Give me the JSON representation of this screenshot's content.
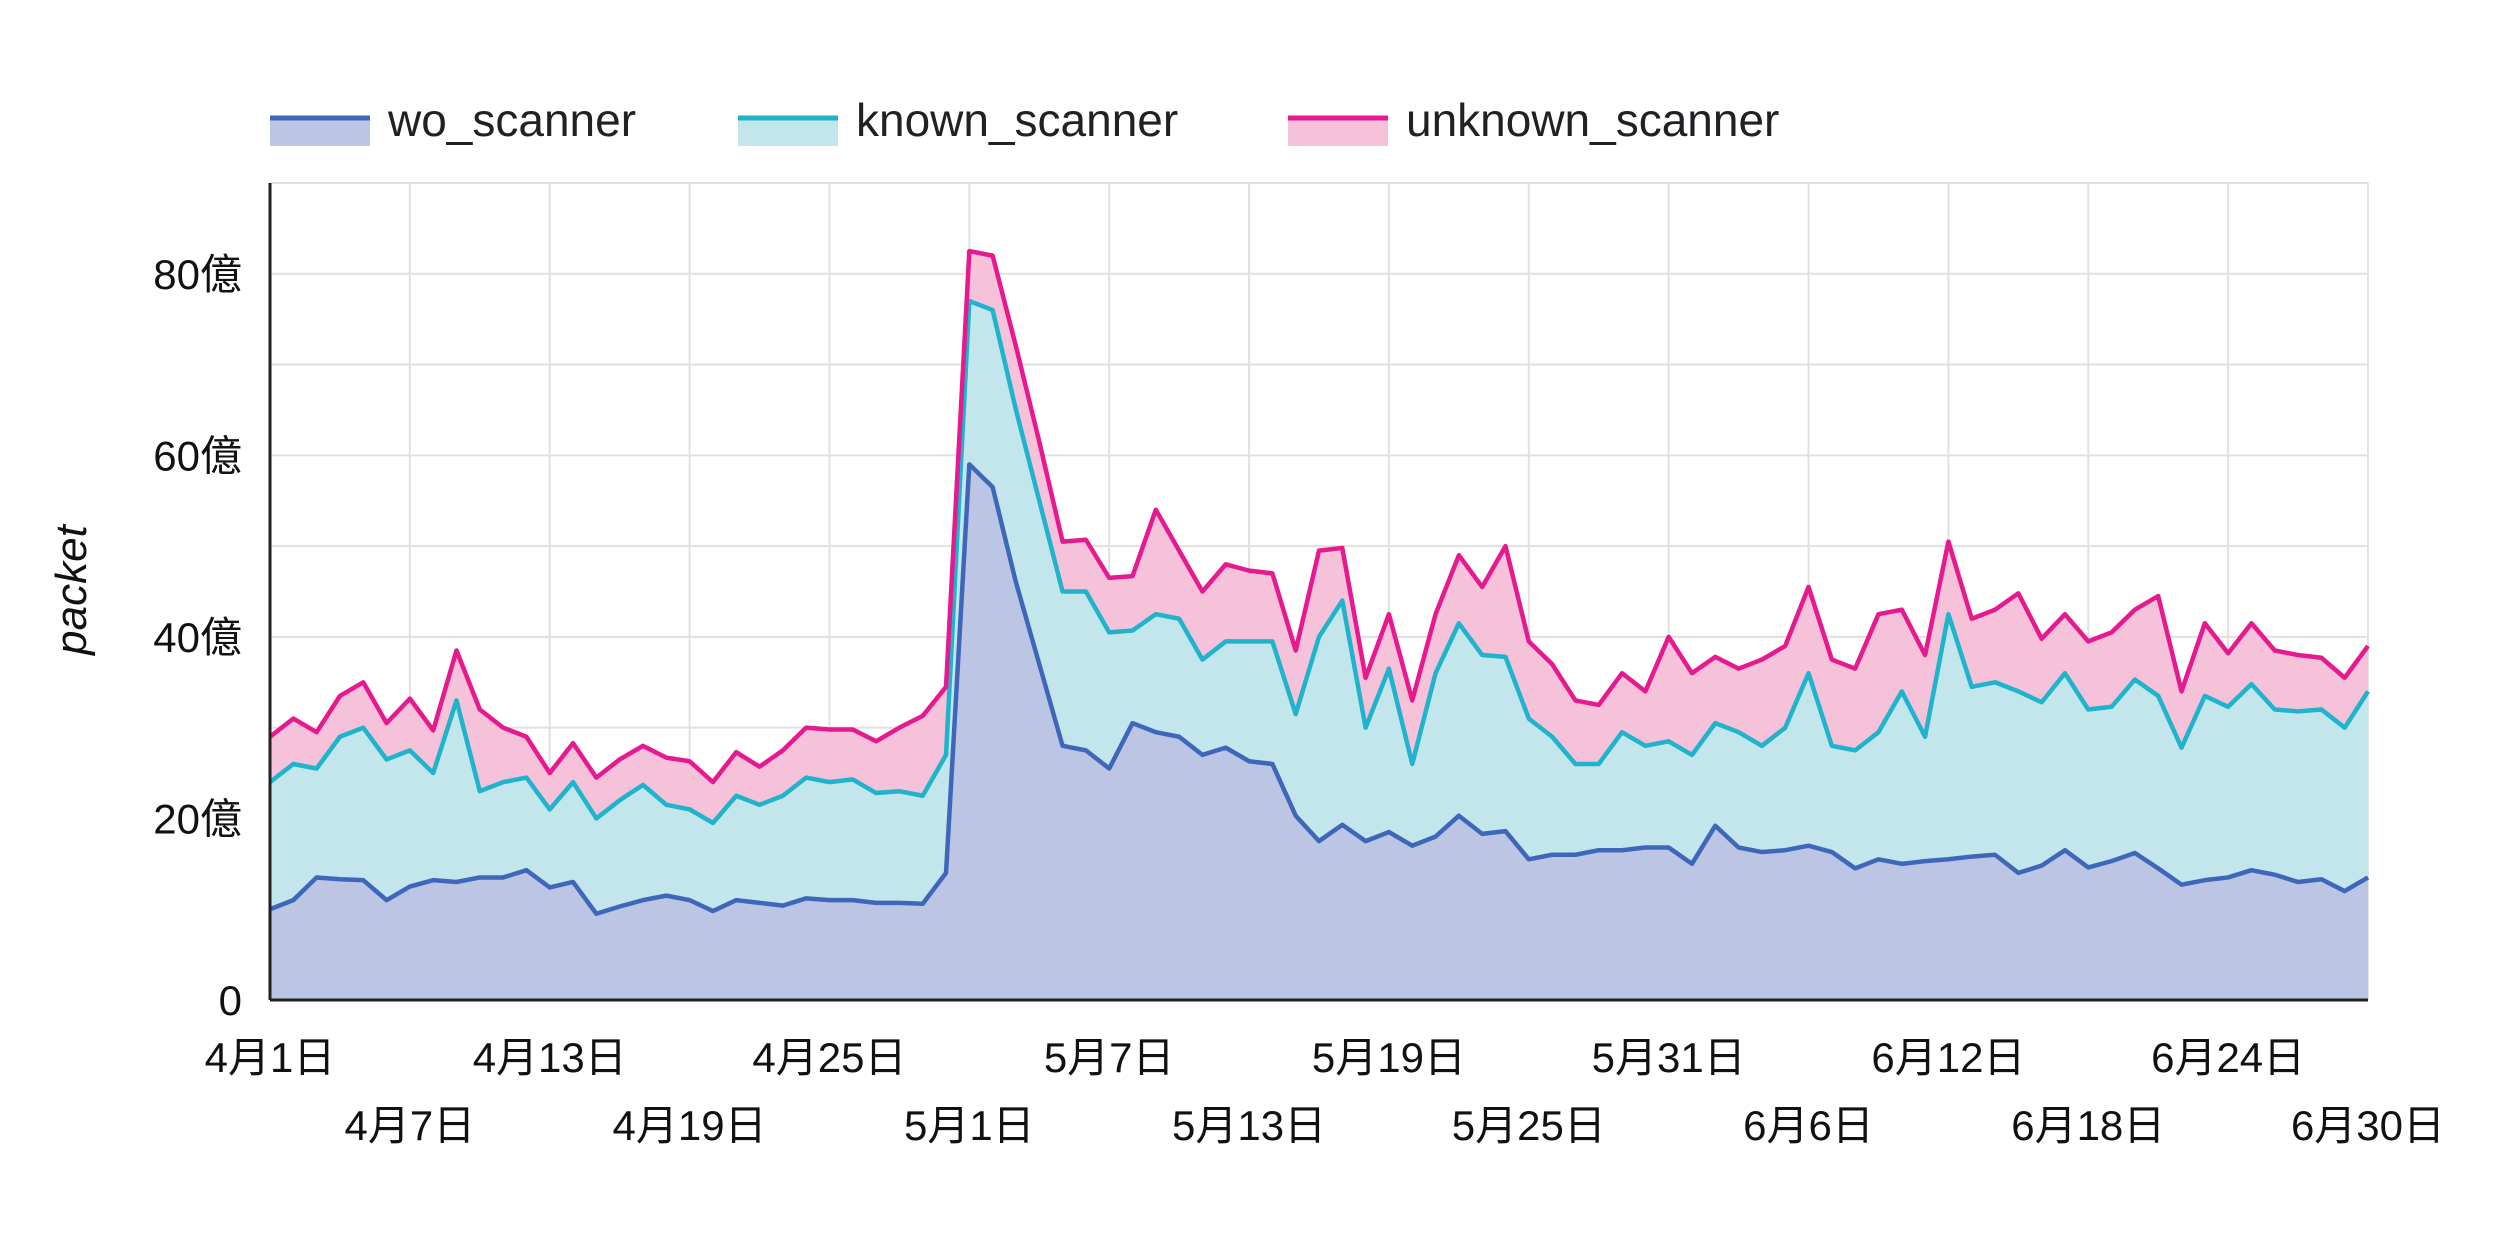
{
  "chart_data": {
    "type": "area",
    "stacked": true,
    "ylabel": "packet",
    "ylim": [
      0,
      90
    ],
    "y_unit": "億",
    "y_ticks": [
      0,
      20,
      40,
      60,
      80
    ],
    "y_tick_labels": [
      "0",
      "20億",
      "40億",
      "60億",
      "80億"
    ],
    "x_range": [
      "2020-04-01",
      "2020-06-30"
    ],
    "x_tick_labels_row1": [
      {
        "date": "2020-04-01",
        "label": "4月1日"
      },
      {
        "date": "2020-04-13",
        "label": "4月13日"
      },
      {
        "date": "2020-04-25",
        "label": "4月25日"
      },
      {
        "date": "2020-05-07",
        "label": "5月7日"
      },
      {
        "date": "2020-05-19",
        "label": "5月19日"
      },
      {
        "date": "2020-05-31",
        "label": "5月31日"
      },
      {
        "date": "2020-06-12",
        "label": "6月12日"
      },
      {
        "date": "2020-06-24",
        "label": "6月24日"
      }
    ],
    "x_tick_labels_row2": [
      {
        "date": "2020-04-07",
        "label": "4月7日"
      },
      {
        "date": "2020-04-19",
        "label": "4月19日"
      },
      {
        "date": "2020-05-01",
        "label": "5月1日"
      },
      {
        "date": "2020-05-13",
        "label": "5月13日"
      },
      {
        "date": "2020-05-25",
        "label": "5月25日"
      },
      {
        "date": "2020-06-06",
        "label": "6月6日"
      },
      {
        "date": "2020-06-18",
        "label": "6月18日"
      },
      {
        "date": "2020-06-30",
        "label": "6月30日"
      }
    ],
    "grid": true,
    "legend_position": "top",
    "series": [
      {
        "name": "wo_scanner",
        "line_color": "#3f67b9",
        "fill_color": "#bcc6e4",
        "cumulative_values": [
          10.0,
          11.0,
          13.5,
          13.3,
          13.2,
          11.0,
          12.5,
          13.2,
          13.0,
          13.5,
          13.5,
          14.3,
          12.4,
          13.0,
          9.5,
          10.3,
          11.0,
          11.5,
          11.0,
          9.8,
          11.0,
          10.7,
          10.4,
          11.2,
          11.0,
          11.0,
          10.7,
          10.7,
          10.6,
          14.0,
          59.0,
          56.5,
          46.0,
          37.0,
          28.0,
          27.5,
          25.5,
          30.5,
          29.5,
          29.0,
          27.0,
          27.8,
          26.3,
          26.0,
          20.3,
          17.5,
          19.3,
          17.5,
          18.5,
          17.0,
          18.0,
          20.3,
          18.3,
          18.6,
          15.5,
          16.0,
          16.0,
          16.5,
          16.5,
          16.8,
          16.8,
          15.0,
          19.2,
          16.8,
          16.3,
          16.5,
          17.0,
          16.3,
          14.5,
          15.5,
          15.0,
          15.3,
          15.5,
          15.8,
          16.0,
          14.0,
          14.8,
          16.5,
          14.6,
          15.3,
          16.2,
          14.5,
          12.7,
          13.2,
          13.5,
          14.3,
          13.8,
          13.0,
          13.3,
          12.0,
          13.5
        ]
      },
      {
        "name": "known_scanner",
        "line_color": "#1fb3cc",
        "fill_color": "#c3e6ec",
        "cumulative_values": [
          24.0,
          26.0,
          25.5,
          29.0,
          30.0,
          26.5,
          27.5,
          25.0,
          33.0,
          23.0,
          24.0,
          24.5,
          21.0,
          24.0,
          20.0,
          22.0,
          23.7,
          21.5,
          21.0,
          19.5,
          22.5,
          21.5,
          22.5,
          24.5,
          24.0,
          24.3,
          22.8,
          23.0,
          22.5,
          27.0,
          77.0,
          76.0,
          65.0,
          55.0,
          45.0,
          45.0,
          40.5,
          40.7,
          42.5,
          42.0,
          37.5,
          39.5,
          39.5,
          39.5,
          31.5,
          40.0,
          44.0,
          30.0,
          36.5,
          26.0,
          36.0,
          41.5,
          38.0,
          37.8,
          31.0,
          29.0,
          26.0,
          26.0,
          29.5,
          28.0,
          28.5,
          27.0,
          30.5,
          29.5,
          28.0,
          30.0,
          36.0,
          28.0,
          27.5,
          29.5,
          34.0,
          29.0,
          42.5,
          34.5,
          35.0,
          34.0,
          32.8,
          36.0,
          32.0,
          32.3,
          35.3,
          33.5,
          27.8,
          33.5,
          32.3,
          34.8,
          32.0,
          31.8,
          32.0,
          30.0,
          34.0
        ]
      },
      {
        "name": "unknown_scanner",
        "line_color": "#e6198f",
        "fill_color": "#f5c2da",
        "cumulative_values": [
          29.0,
          31.0,
          29.5,
          33.5,
          35.0,
          30.5,
          33.2,
          29.7,
          38.5,
          32.0,
          30.0,
          29.0,
          25.0,
          28.3,
          24.5,
          26.5,
          28.0,
          26.7,
          26.3,
          24.0,
          27.3,
          25.7,
          27.5,
          30.0,
          29.8,
          29.8,
          28.5,
          30.0,
          31.3,
          34.5,
          82.5,
          82.0,
          72.0,
          61.5,
          50.5,
          50.7,
          46.5,
          46.7,
          54.0,
          49.5,
          45.0,
          48.0,
          47.3,
          47.0,
          38.5,
          49.5,
          49.8,
          35.5,
          42.5,
          33.0,
          42.5,
          49.0,
          45.5,
          50.0,
          39.5,
          37.0,
          33.0,
          32.5,
          36.0,
          34.0,
          40.0,
          36.0,
          37.8,
          36.5,
          37.5,
          39.0,
          45.5,
          37.5,
          36.5,
          42.5,
          43.0,
          38.0,
          50.5,
          42.0,
          43.0,
          44.8,
          39.8,
          42.5,
          39.5,
          40.5,
          43.0,
          44.5,
          34.0,
          41.5,
          38.2,
          41.5,
          38.5,
          38.0,
          37.7,
          35.5,
          39.0
        ]
      }
    ]
  }
}
